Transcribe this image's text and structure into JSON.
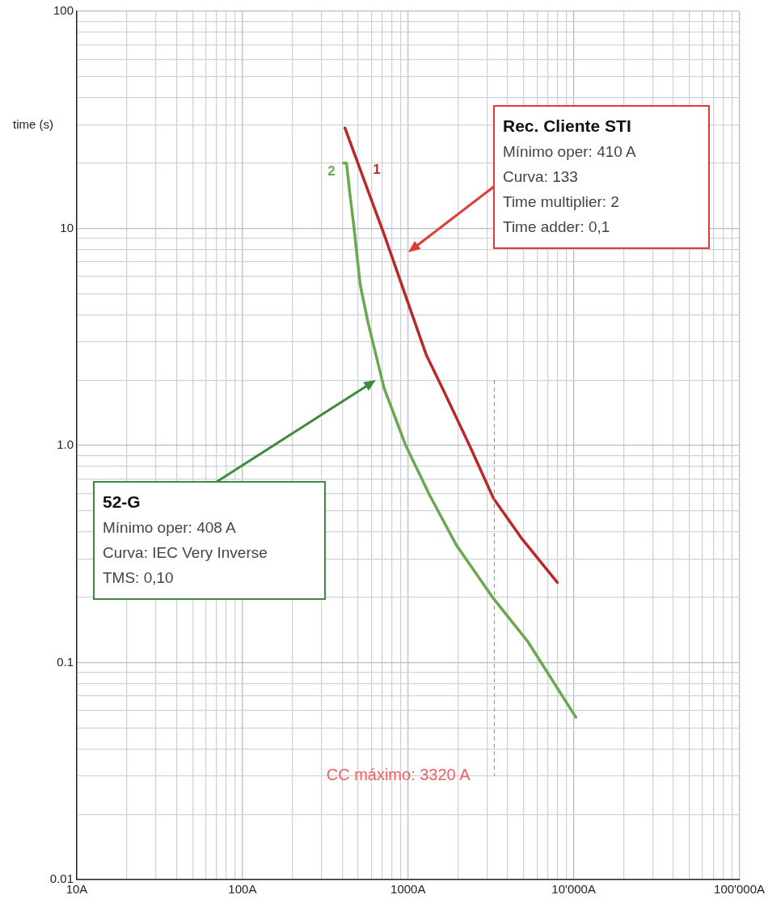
{
  "chart_data": {
    "type": "line",
    "ylabel": "time (s)",
    "log": "xy",
    "grid": true,
    "xlim": [
      10,
      100000
    ],
    "ylim": [
      0.01,
      100
    ],
    "xticks": [
      {
        "value": 10,
        "label": "10A"
      },
      {
        "value": 20,
        "label": null
      },
      {
        "value": 30,
        "label": null
      },
      {
        "value": 40,
        "label": null
      },
      {
        "value": 50,
        "label": null
      },
      {
        "value": 60,
        "label": null
      },
      {
        "value": 70,
        "label": null
      },
      {
        "value": 80,
        "label": null
      },
      {
        "value": 90,
        "label": null
      },
      {
        "value": 100,
        "label": "100A"
      },
      {
        "value": 200,
        "label": null
      },
      {
        "value": 300,
        "label": null
      },
      {
        "value": 400,
        "label": null
      },
      {
        "value": 500,
        "label": null
      },
      {
        "value": 600,
        "label": null
      },
      {
        "value": 700,
        "label": null
      },
      {
        "value": 800,
        "label": null
      },
      {
        "value": 900,
        "label": null
      },
      {
        "value": 1000,
        "label": "1000A"
      },
      {
        "value": 2000,
        "label": null
      },
      {
        "value": 3000,
        "label": null
      },
      {
        "value": 4000,
        "label": null
      },
      {
        "value": 5000,
        "label": null
      },
      {
        "value": 6000,
        "label": null
      },
      {
        "value": 7000,
        "label": null
      },
      {
        "value": 8000,
        "label": null
      },
      {
        "value": 9000,
        "label": null
      },
      {
        "value": 10000,
        "label": "10'000A"
      },
      {
        "value": 20000,
        "label": null
      },
      {
        "value": 30000,
        "label": null
      },
      {
        "value": 40000,
        "label": null
      },
      {
        "value": 50000,
        "label": null
      },
      {
        "value": 60000,
        "label": null
      },
      {
        "value": 70000,
        "label": null
      },
      {
        "value": 80000,
        "label": null
      },
      {
        "value": 90000,
        "label": null
      },
      {
        "value": 100000,
        "label": "100'000A"
      }
    ],
    "yticks": [
      {
        "value": 0.01,
        "label": "0.01"
      },
      {
        "value": 0.02,
        "label": null
      },
      {
        "value": 0.03,
        "label": null
      },
      {
        "value": 0.04,
        "label": null
      },
      {
        "value": 0.05,
        "label": null
      },
      {
        "value": 0.06,
        "label": null
      },
      {
        "value": 0.07,
        "label": null
      },
      {
        "value": 0.08,
        "label": null
      },
      {
        "value": 0.09,
        "label": null
      },
      {
        "value": 0.1,
        "label": "0.1"
      },
      {
        "value": 0.2,
        "label": null
      },
      {
        "value": 0.3,
        "label": null
      },
      {
        "value": 0.4,
        "label": null
      },
      {
        "value": 0.5,
        "label": null
      },
      {
        "value": 0.6,
        "label": null
      },
      {
        "value": 0.7,
        "label": null
      },
      {
        "value": 0.8,
        "label": null
      },
      {
        "value": 0.9,
        "label": null
      },
      {
        "value": 1,
        "label": "1.0"
      },
      {
        "value": 2,
        "label": null
      },
      {
        "value": 3,
        "label": null
      },
      {
        "value": 4,
        "label": null
      },
      {
        "value": 5,
        "label": null
      },
      {
        "value": 6,
        "label": null
      },
      {
        "value": 7,
        "label": null
      },
      {
        "value": 8,
        "label": null
      },
      {
        "value": 9,
        "label": null
      },
      {
        "value": 10,
        "label": "10"
      },
      {
        "value": 20,
        "label": null
      },
      {
        "value": 30,
        "label": null
      },
      {
        "value": 40,
        "label": null
      },
      {
        "value": 50,
        "label": null
      },
      {
        "value": 60,
        "label": null
      },
      {
        "value": 70,
        "label": null
      },
      {
        "value": 80,
        "label": null
      },
      {
        "value": 90,
        "label": null
      },
      {
        "value": 100,
        "label": "100"
      }
    ],
    "series": [
      {
        "color": "#b82a2a",
        "x": [
          416,
          716,
          1291,
          1611,
          2350,
          3280,
          4890,
          7960
        ],
        "values": [
          29,
          9.4,
          2.6,
          1.84,
          1.0,
          0.57,
          0.37,
          0.234
        ]
      },
      {
        "color": "#6aa84f",
        "x": [
          408,
          425,
          445,
          470,
          514,
          574,
          641,
          716,
          968,
          1350,
          1946,
          3280,
          5280,
          10300
        ],
        "values": [
          20,
          20,
          14.5,
          10.3,
          5.5,
          3.66,
          2.6,
          1.84,
          1.0,
          0.59,
          0.35,
          0.197,
          0.125,
          0.056
        ]
      }
    ],
    "ref_lines": [
      {
        "axis": "x",
        "value": 3320,
        "label": "CC máximo: 3320 A",
        "color": "#f06060",
        "line_style": "dashed"
      }
    ],
    "annotations": [
      "Rec. Cliente STI\nMínimo oper: 410 A\nCurva: 133\nTime multiplier: 2\nTime adder: 0,1",
      "52-G\nMínimo oper: 408 A\nCurva: IEC Very Inverse\nTMS: 0,10",
      "1",
      "2"
    ]
  }
}
